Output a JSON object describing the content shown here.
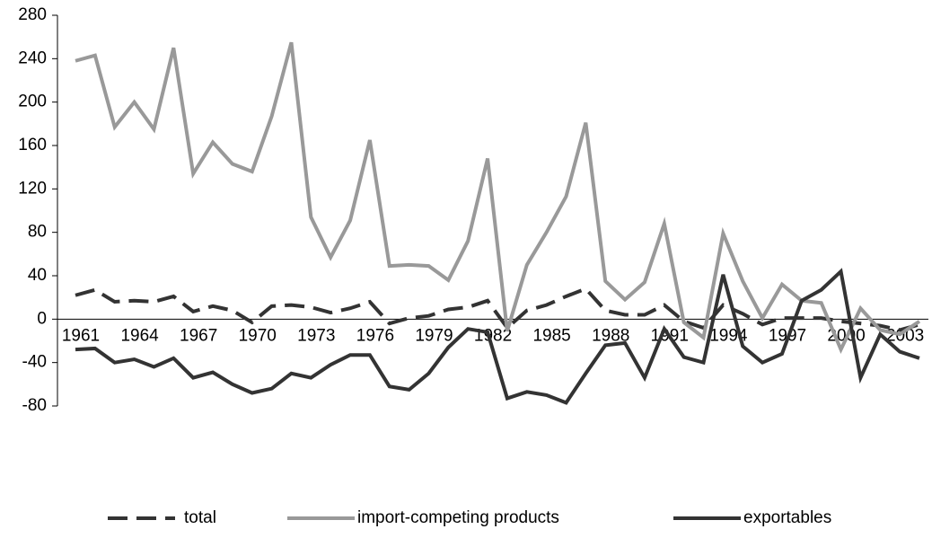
{
  "chart_data": {
    "type": "line",
    "categories": [
      "1961",
      null,
      null,
      "1964",
      null,
      null,
      "1967",
      null,
      null,
      "1970",
      null,
      null,
      "1973",
      null,
      null,
      "1976",
      null,
      null,
      "1979",
      null,
      null,
      "1982",
      null,
      null,
      "1985",
      null,
      null,
      "1988",
      null,
      null,
      "1991",
      null,
      null,
      "1994",
      null,
      null,
      "1997",
      null,
      null,
      "2000",
      null,
      null,
      "2003",
      null
    ],
    "ylim": [
      -80,
      280
    ],
    "yticks": [
      -80,
      -40,
      0,
      40,
      80,
      120,
      160,
      200,
      240,
      280
    ],
    "legend": "bottom",
    "series": [
      {
        "name": "total",
        "color": "#333333",
        "dash": true,
        "values": [
          22,
          27,
          16,
          17,
          16,
          21,
          7,
          12,
          8,
          -3,
          12,
          13,
          11,
          6,
          10,
          16,
          -4,
          1,
          3,
          9,
          11,
          17,
          -8,
          8,
          13,
          21,
          28,
          8,
          4,
          4,
          13,
          -2,
          -8,
          13,
          5,
          -5,
          1,
          1,
          1,
          -2,
          -4,
          -6,
          -10,
          -5
        ]
      },
      {
        "name": "import-competing products",
        "color": "#999999",
        "dash": false,
        "values": [
          238,
          243,
          177,
          200,
          175,
          250,
          134,
          163,
          143,
          136,
          187,
          255,
          94,
          57,
          91,
          165,
          49,
          50,
          49,
          36,
          72,
          148,
          -11,
          50,
          80,
          113,
          181,
          35,
          18,
          34,
          88,
          -3,
          -17,
          79,
          35,
          1,
          32,
          17,
          15,
          -28,
          10,
          -10,
          -14,
          -2
        ]
      },
      {
        "name": "exportables",
        "color": "#333333",
        "dash": false,
        "values": [
          -28,
          -27,
          -40,
          -37,
          -44,
          -36,
          -54,
          -49,
          -60,
          -68,
          -64,
          -50,
          -54,
          -42,
          -33,
          -33,
          -62,
          -65,
          -50,
          -26,
          -9,
          -12,
          -73,
          -67,
          -70,
          -77,
          -50,
          -24,
          -22,
          -54,
          -9,
          -35,
          -40,
          41,
          -25,
          -40,
          -32,
          17,
          27,
          44,
          -54,
          -14,
          -30,
          -36
        ]
      }
    ]
  }
}
